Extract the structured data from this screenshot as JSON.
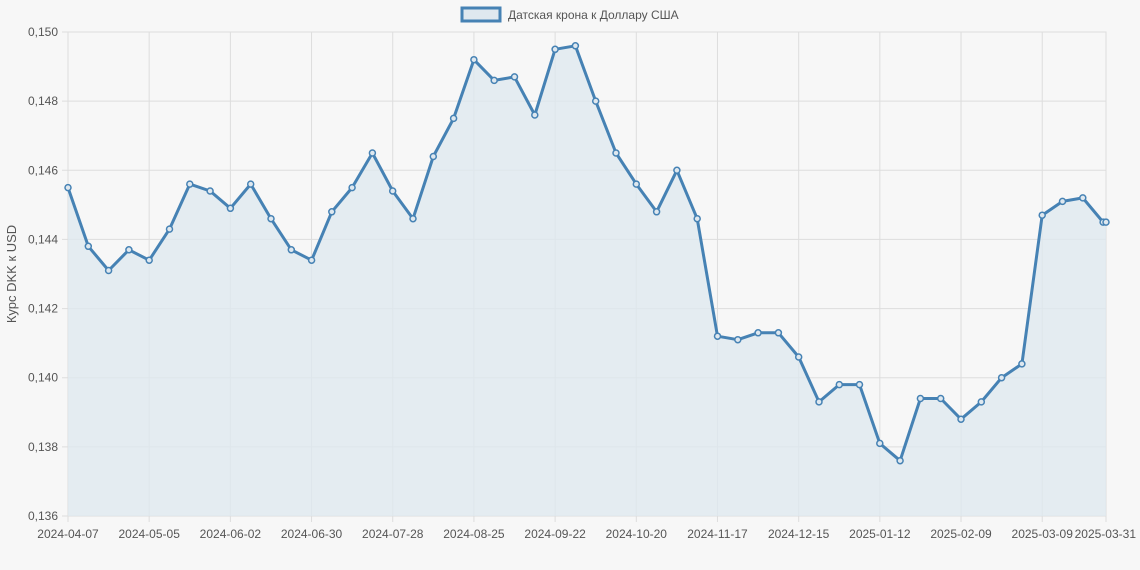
{
  "chart_data": {
    "type": "area",
    "title": "",
    "xlabel": "",
    "ylabel": "Курс DKK к USD",
    "legend": {
      "position": "top-center"
    },
    "grid": true,
    "ylim": [
      0.136,
      0.15
    ],
    "y_ticks": [
      "0,136",
      "0,138",
      "0,140",
      "0,142",
      "0,144",
      "0,146",
      "0,148",
      "0,150"
    ],
    "x_ticks": [
      "2024-04-07",
      "2024-05-05",
      "2024-06-02",
      "2024-06-30",
      "2024-07-28",
      "2024-08-25",
      "2024-09-22",
      "2024-10-20",
      "2024-11-17",
      "2024-12-15",
      "2025-01-12",
      "2025-02-09",
      "2025-03-09",
      "2025-03-31"
    ],
    "colors": {
      "line": "#4682b4",
      "fill": "#dfe8ef",
      "grid": "#dddddd"
    },
    "series": [
      {
        "name": "Датская крона к Доллару США",
        "x": [
          "2024-04-07",
          "2024-04-14",
          "2024-04-21",
          "2024-04-28",
          "2024-05-05",
          "2024-05-12",
          "2024-05-19",
          "2024-05-26",
          "2024-06-02",
          "2024-06-09",
          "2024-06-16",
          "2024-06-23",
          "2024-06-30",
          "2024-07-07",
          "2024-07-14",
          "2024-07-21",
          "2024-07-28",
          "2024-08-04",
          "2024-08-11",
          "2024-08-18",
          "2024-08-25",
          "2024-09-01",
          "2024-09-08",
          "2024-09-15",
          "2024-09-22",
          "2024-09-29",
          "2024-10-06",
          "2024-10-13",
          "2024-10-20",
          "2024-10-27",
          "2024-11-03",
          "2024-11-10",
          "2024-11-17",
          "2024-11-24",
          "2024-12-01",
          "2024-12-08",
          "2024-12-15",
          "2024-12-22",
          "2024-12-29",
          "2025-01-05",
          "2025-01-12",
          "2025-01-19",
          "2025-01-26",
          "2025-02-02",
          "2025-02-09",
          "2025-02-16",
          "2025-02-23",
          "2025-03-02",
          "2025-03-09",
          "2025-03-16",
          "2025-03-23",
          "2025-03-30",
          "2025-03-31"
        ],
        "values": [
          0.1455,
          0.1438,
          0.1431,
          0.1437,
          0.1434,
          0.1443,
          0.1456,
          0.1454,
          0.1449,
          0.1456,
          0.1446,
          0.1437,
          0.1434,
          0.1448,
          0.1455,
          0.1465,
          0.1454,
          0.1446,
          0.1464,
          0.1475,
          0.1492,
          0.1486,
          0.1487,
          0.1476,
          0.1495,
          0.1496,
          0.148,
          0.1465,
          0.1456,
          0.1448,
          0.146,
          0.1446,
          0.1412,
          0.1411,
          0.1413,
          0.1413,
          0.1406,
          0.1393,
          0.1398,
          0.1398,
          0.1381,
          0.1376,
          0.1394,
          0.1394,
          0.1388,
          0.1393,
          0.14,
          0.1404,
          0.1447,
          0.1451,
          0.1452,
          0.1445,
          0.1445
        ]
      }
    ]
  }
}
